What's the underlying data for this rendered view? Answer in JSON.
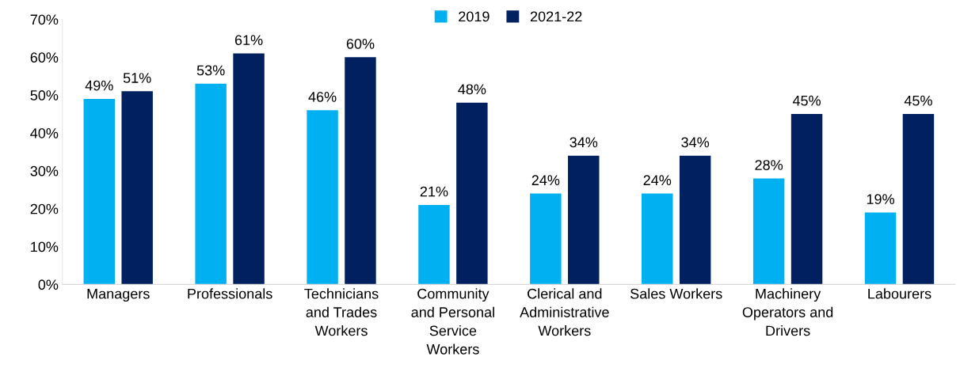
{
  "chart_data": {
    "type": "bar",
    "categories": [
      "Managers",
      "Professionals",
      "Technicians\nand Trades\nWorkers",
      "Community\nand Personal\nService\nWorkers",
      "Clerical and\nAdministrative\nWorkers",
      "Sales Workers",
      "Machinery\nOperators and\nDrivers",
      "Labourers"
    ],
    "series": [
      {
        "name": "2019",
        "color": "#00b0f0",
        "values": [
          49,
          53,
          46,
          21,
          24,
          24,
          28,
          19
        ],
        "value_labels": [
          "49%",
          "53%",
          "46%",
          "21%",
          "24%",
          "24%",
          "28%",
          "19%"
        ]
      },
      {
        "name": "2021-22",
        "color": "#002060",
        "values": [
          51,
          61,
          60,
          48,
          34,
          34,
          45,
          45
        ],
        "value_labels": [
          "51%",
          "61%",
          "60%",
          "48%",
          "34%",
          "34%",
          "45%",
          "45%"
        ]
      }
    ],
    "ylim": [
      0,
      70
    ],
    "yticks": [
      {
        "value": 0,
        "label": "0%"
      },
      {
        "value": 10,
        "label": "10%"
      },
      {
        "value": 20,
        "label": "20%"
      },
      {
        "value": 30,
        "label": "30%"
      },
      {
        "value": 40,
        "label": "40%"
      },
      {
        "value": 50,
        "label": "50%"
      },
      {
        "value": 60,
        "label": "60%"
      },
      {
        "value": 70,
        "label": "70%"
      }
    ],
    "grid": false,
    "legend": "top"
  }
}
